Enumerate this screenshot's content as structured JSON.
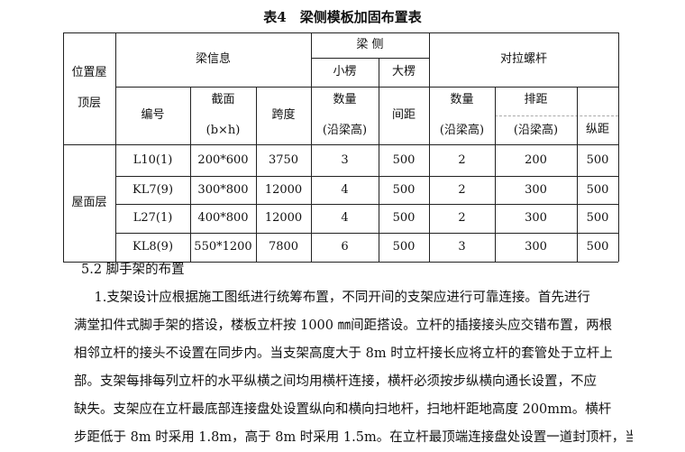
{
  "title": "表4　梁侧模板加固布置表",
  "header": {
    "location": [
      "位置屋",
      "顶层"
    ],
    "beam_info": "梁信息",
    "beam_side": "梁 侧",
    "small_rib": "小楞",
    "big_rib": "大楞",
    "tie_rod": "对拉螺杆",
    "code": "编号",
    "section": [
      "截面",
      "(b×h)"
    ],
    "span": "跨度",
    "qty": [
      "数量",
      "(沿梁高)"
    ],
    "spacing": "间距",
    "rod_qty": [
      "数量",
      "(沿梁高)"
    ],
    "row_spacing": [
      "排距",
      "(沿梁高)"
    ],
    "long_spacing": "纵距"
  },
  "location_value": "屋面层",
  "rows": [
    [
      "L10(1)",
      "200*600",
      "3750",
      "3",
      "500",
      "2",
      "200",
      "500"
    ],
    [
      "KL7(9)",
      "300*800",
      "12000",
      "4",
      "500",
      "2",
      "300",
      "500"
    ],
    [
      "L27(1)",
      "400*800",
      "12000",
      "4",
      "500",
      "2",
      "300",
      "500"
    ],
    [
      "KL8(9)",
      "550*1200",
      "7800",
      "6",
      "500",
      "3",
      "300",
      "500"
    ]
  ],
  "section_heading": "5.2 脚手架的布置",
  "paragraph_lines": [
    "　1.支架设计应根据施工图纸进行统筹布置，不同开间的支架应进行可靠连接。首先进行",
    "满堂扣件式脚手架的搭设，楼板立杆按 1000 ㎜间距搭设。立杆的插接接头应交错布置，两根",
    "相邻立杆的接头不设置在同步内。当支架高度大于 8m 时立杆接长应将立杆的套管处于立杆上",
    "部。支架每排每列立杆的水平纵横之间均用横杆连接，横杆必须按步纵横向通长设置，不应",
    "缺失。支架应在立杆最底部连接盘处设置纵向和横向扫地杆，扫地杆距地高度 200mm。横杆",
    "步距低于 8m 时采用 1.8m，高于 8m 时采用 1.5m。在立杆最顶端连接盘处设置一道封顶杆，当"
  ]
}
